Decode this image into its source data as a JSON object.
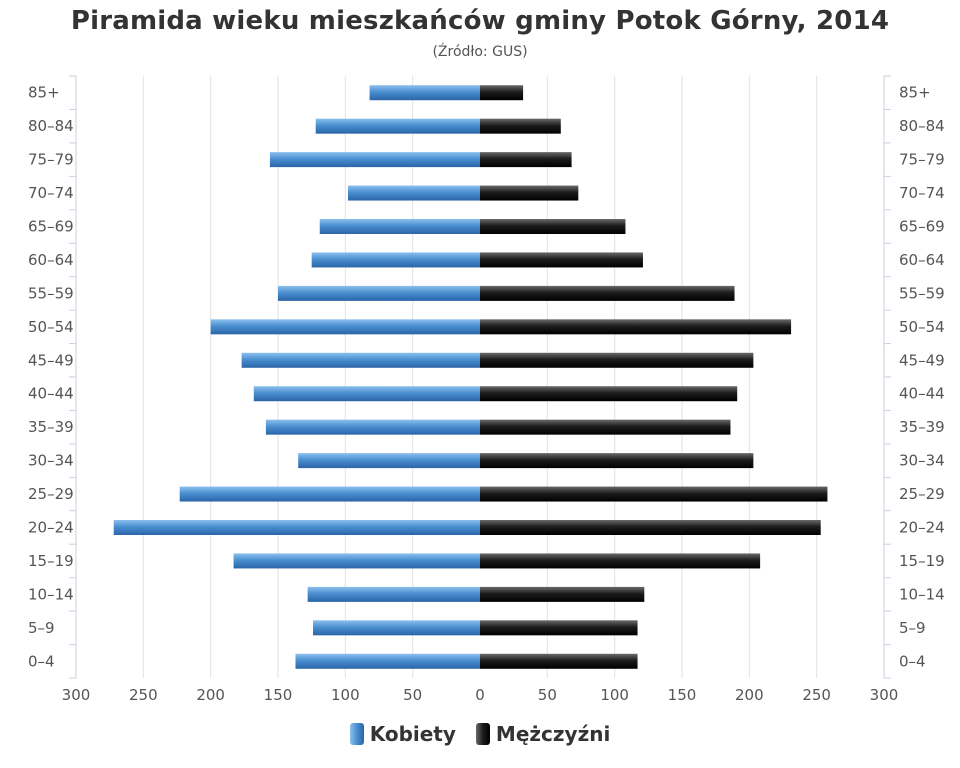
{
  "chart_data": {
    "type": "bar",
    "title": "Piramida wieku mieszkańców gminy Potok Górny, 2014",
    "subtitle": "(Źródło: GUS)",
    "categories": [
      "0–4",
      "5–9",
      "10–14",
      "15–19",
      "20–24",
      "25–29",
      "30–34",
      "35–39",
      "40–44",
      "45–49",
      "50–54",
      "55–59",
      "60–64",
      "65–69",
      "70–74",
      "75–79",
      "80–84",
      "85+"
    ],
    "series": [
      {
        "name": "Kobiety",
        "color": "#3d7fc1",
        "values": [
          137,
          124,
          128,
          183,
          272,
          223,
          135,
          159,
          168,
          177,
          200,
          150,
          125,
          119,
          98,
          156,
          122,
          82
        ]
      },
      {
        "name": "Mężczyźni",
        "color": "#111111",
        "values": [
          117,
          117,
          122,
          208,
          253,
          258,
          203,
          186,
          191,
          203,
          231,
          189,
          121,
          108,
          73,
          68,
          60,
          32
        ]
      }
    ],
    "xlim": [
      -300,
      300
    ],
    "x_ticks": [
      "300",
      "250",
      "200",
      "150",
      "100",
      "50",
      "0",
      "50",
      "100",
      "150",
      "200",
      "250",
      "300"
    ],
    "orientation": "horizontal",
    "grid": true,
    "legend": "bottom"
  }
}
